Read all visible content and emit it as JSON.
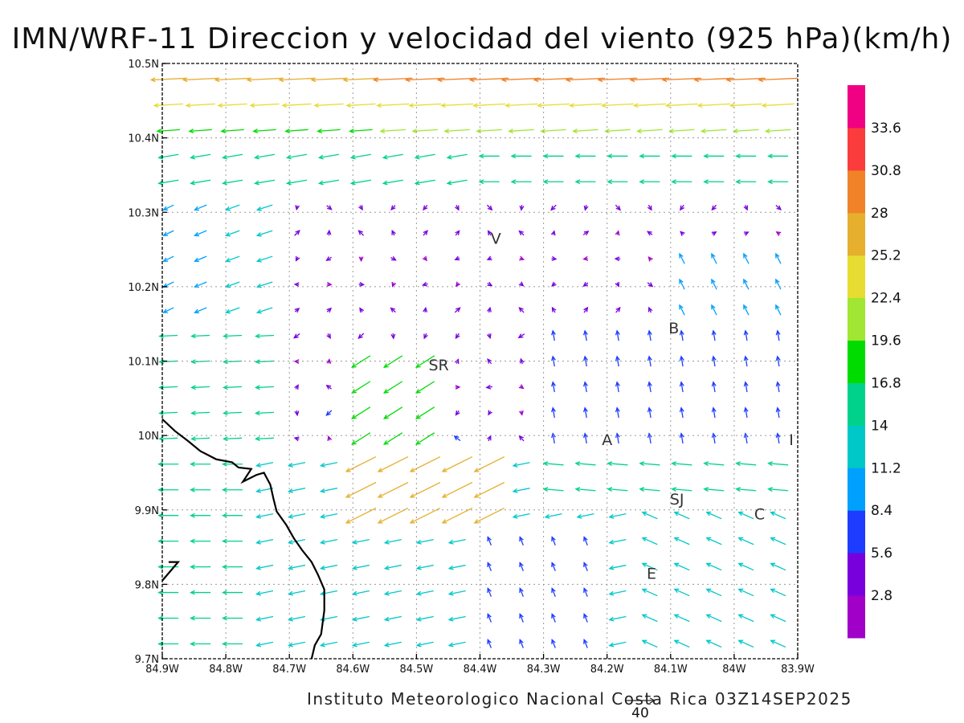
{
  "chart_data": {
    "type": "vector-field",
    "title": "IMN/WRF-11 Direccion y velocidad del viento (925 hPa)(km/h)",
    "footer": "Instituto Meteorologico Nacional Costa Rica 03Z14SEP2025",
    "reference_vector": {
      "value": "40"
    },
    "xlim": [
      -84.9,
      -83.9
    ],
    "ylim": [
      9.7,
      10.5
    ],
    "x_ticks": [
      {
        "value": -84.9,
        "label": "84.9W"
      },
      {
        "value": -84.8,
        "label": "84.8W"
      },
      {
        "value": -84.7,
        "label": "84.7W"
      },
      {
        "value": -84.6,
        "label": "84.6W"
      },
      {
        "value": -84.5,
        "label": "84.5W"
      },
      {
        "value": -84.4,
        "label": "84.4W"
      },
      {
        "value": -84.3,
        "label": "84.3W"
      },
      {
        "value": -84.2,
        "label": "84.2W"
      },
      {
        "value": -84.1,
        "label": "84.1W"
      },
      {
        "value": -84.0,
        "label": "84W"
      },
      {
        "value": -83.9,
        "label": "83.9W"
      }
    ],
    "y_ticks": [
      {
        "value": 9.7,
        "label": "9.7N"
      },
      {
        "value": 9.8,
        "label": "9.8N"
      },
      {
        "value": 9.9,
        "label": "9.9N"
      },
      {
        "value": 10.0,
        "label": "10N"
      },
      {
        "value": 10.1,
        "label": "10.1N"
      },
      {
        "value": 10.2,
        "label": "10.2N"
      },
      {
        "value": 10.3,
        "label": "10.3N"
      },
      {
        "value": 10.4,
        "label": "10.4N"
      },
      {
        "value": 10.5,
        "label": "10.5N"
      }
    ],
    "grid": true,
    "colorbar": {
      "placement": "right",
      "colors": [
        "#a000c8",
        "#7800dc",
        "#1e3cff",
        "#00a0ff",
        "#00c8c8",
        "#00d28c",
        "#00dc00",
        "#a0e632",
        "#e6dc32",
        "#e6af2d",
        "#f08228",
        "#fa3c3c",
        "#f00082"
      ],
      "labels": [
        "2.8",
        "5.6",
        "8.4",
        "11.2",
        "14",
        "16.8",
        "19.6",
        "22.4",
        "25.2",
        "28",
        "30.8",
        "33.6"
      ]
    },
    "places": [
      {
        "label": "V",
        "lon": -84.375,
        "lat": 10.265
      },
      {
        "label": "B",
        "lon": -84.095,
        "lat": 10.145
      },
      {
        "label": "SR",
        "lon": -84.465,
        "lat": 10.095
      },
      {
        "label": "A",
        "lon": -84.2,
        "lat": 9.995
      },
      {
        "label": "I",
        "lon": -83.91,
        "lat": 9.995
      },
      {
        "label": "SJ",
        "lon": -84.09,
        "lat": 9.915
      },
      {
        "label": "C",
        "lon": -83.96,
        "lat": 9.895
      },
      {
        "label": "E",
        "lon": -84.13,
        "lat": 9.815
      }
    ],
    "coastline": [
      [
        -84.9,
        10.022
      ],
      [
        -84.88,
        10.006
      ],
      [
        -84.86,
        9.993
      ],
      [
        -84.84,
        9.979
      ],
      [
        -84.815,
        9.968
      ],
      [
        -84.79,
        9.964
      ],
      [
        -84.78,
        9.957
      ],
      [
        -84.76,
        9.955
      ],
      [
        -84.773,
        9.938
      ],
      [
        -84.752,
        9.947
      ],
      [
        -84.74,
        9.95
      ],
      [
        -84.73,
        9.934
      ],
      [
        -84.725,
        9.915
      ],
      [
        -84.72,
        9.898
      ],
      [
        -84.705,
        9.88
      ],
      [
        -84.693,
        9.862
      ],
      [
        -84.68,
        9.846
      ],
      [
        -84.665,
        9.83
      ],
      [
        -84.655,
        9.813
      ],
      [
        -84.645,
        9.793
      ],
      [
        -84.645,
        9.765
      ],
      [
        -84.65,
        9.733
      ],
      [
        -84.66,
        9.718
      ],
      [
        -84.665,
        9.7
      ]
    ],
    "coastline_west": [
      [
        -84.9,
        9.805
      ],
      [
        -84.885,
        9.82
      ],
      [
        -84.875,
        9.83
      ],
      [
        -84.89,
        9.83
      ]
    ]
  }
}
